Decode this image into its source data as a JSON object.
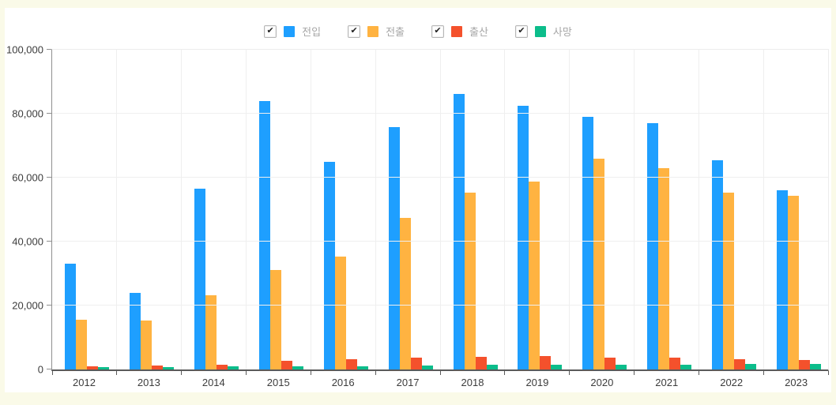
{
  "page": {
    "background_color": "#fafae8",
    "panel_color": "#ffffff"
  },
  "legend": {
    "items": [
      {
        "label": "전입",
        "checked": true,
        "checkmark": "✔",
        "color": "#1e9fff"
      },
      {
        "label": "전출",
        "checked": true,
        "checkmark": "✔",
        "color": "#ffb341"
      },
      {
        "label": "출산",
        "checked": true,
        "checkmark": "✔",
        "color": "#f4512c"
      },
      {
        "label": "사망",
        "checked": true,
        "checkmark": "✔",
        "color": "#0cbd8b"
      }
    ]
  },
  "chart_data": {
    "type": "bar",
    "categories": [
      "2012",
      "2013",
      "2014",
      "2015",
      "2016",
      "2017",
      "2018",
      "2019",
      "2020",
      "2021",
      "2022",
      "2023"
    ],
    "series": [
      {
        "name": "전입",
        "color": "#1e9fff",
        "values": [
          33000,
          24000,
          56500,
          84000,
          65000,
          75800,
          86300,
          82500,
          79000,
          77000,
          65500,
          56000
        ]
      },
      {
        "name": "전출",
        "color": "#ffb341",
        "values": [
          15500,
          15300,
          23200,
          31000,
          35300,
          47300,
          55200,
          58800,
          66000,
          63000,
          55300,
          54300
        ]
      },
      {
        "name": "출산",
        "color": "#f4512c",
        "values": [
          1000,
          1200,
          1600,
          2700,
          3300,
          3600,
          3900,
          4100,
          3700,
          3800,
          3200,
          2900
        ]
      },
      {
        "name": "사망",
        "color": "#0cbd8b",
        "values": [
          700,
          800,
          1000,
          1100,
          1100,
          1300,
          1400,
          1400,
          1400,
          1500,
          1800,
          1700
        ]
      }
    ],
    "title": "",
    "xlabel": "",
    "ylabel": "",
    "ylim": [
      0,
      100000
    ],
    "yticks": [
      {
        "value": 0,
        "label": "0"
      },
      {
        "value": 20000,
        "label": "20,000"
      },
      {
        "value": 40000,
        "label": "40,000"
      },
      {
        "value": 60000,
        "label": "60,000"
      },
      {
        "value": 80000,
        "label": "80,000"
      },
      {
        "value": 100000,
        "label": "100,000"
      }
    ],
    "grid": true,
    "legend_position": "top"
  }
}
